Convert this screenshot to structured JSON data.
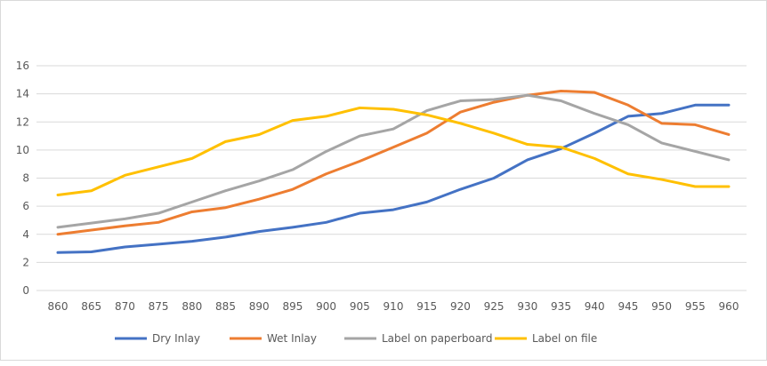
{
  "chart_data": {
    "type": "line",
    "title": "",
    "xlabel": "",
    "ylabel": "",
    "x": [
      860,
      865,
      870,
      875,
      880,
      885,
      890,
      895,
      900,
      905,
      910,
      915,
      920,
      925,
      930,
      935,
      940,
      945,
      950,
      955,
      960
    ],
    "ylim": [
      0,
      16
    ],
    "yticks": [
      0,
      2,
      4,
      6,
      8,
      10,
      12,
      14,
      16
    ],
    "grid": true,
    "legend": "bottom",
    "series": [
      {
        "name": "Dry Inlay",
        "color": "#4472C4",
        "values": [
          2.7,
          2.75,
          3.1,
          3.3,
          3.5,
          3.8,
          4.2,
          4.5,
          4.85,
          5.5,
          5.75,
          6.3,
          7.2,
          8.0,
          9.3,
          10.1,
          11.2,
          12.4,
          12.6,
          13.2,
          13.2
        ]
      },
      {
        "name": "Wet Inlay",
        "color": "#ED7D31",
        "values": [
          4.0,
          4.3,
          4.6,
          4.85,
          5.6,
          5.9,
          6.5,
          7.2,
          8.3,
          9.2,
          10.2,
          11.2,
          12.7,
          13.4,
          13.9,
          14.2,
          14.1,
          13.2,
          11.9,
          11.8,
          11.1
        ]
      },
      {
        "name": "Label on paperboard",
        "color": "#A5A5A5",
        "values": [
          4.5,
          4.8,
          5.1,
          5.5,
          6.3,
          7.1,
          7.8,
          8.6,
          9.9,
          11.0,
          11.5,
          12.8,
          13.5,
          13.6,
          13.9,
          13.5,
          12.6,
          11.8,
          10.5,
          9.9,
          9.3
        ]
      },
      {
        "name": "Label on file",
        "color": "#FFC000",
        "values": [
          6.8,
          7.1,
          8.2,
          8.8,
          9.4,
          10.6,
          11.1,
          12.1,
          12.4,
          13.0,
          12.9,
          12.5,
          11.9,
          11.2,
          10.4,
          10.2,
          9.4,
          8.3,
          7.9,
          7.4,
          7.4
        ]
      }
    ]
  }
}
